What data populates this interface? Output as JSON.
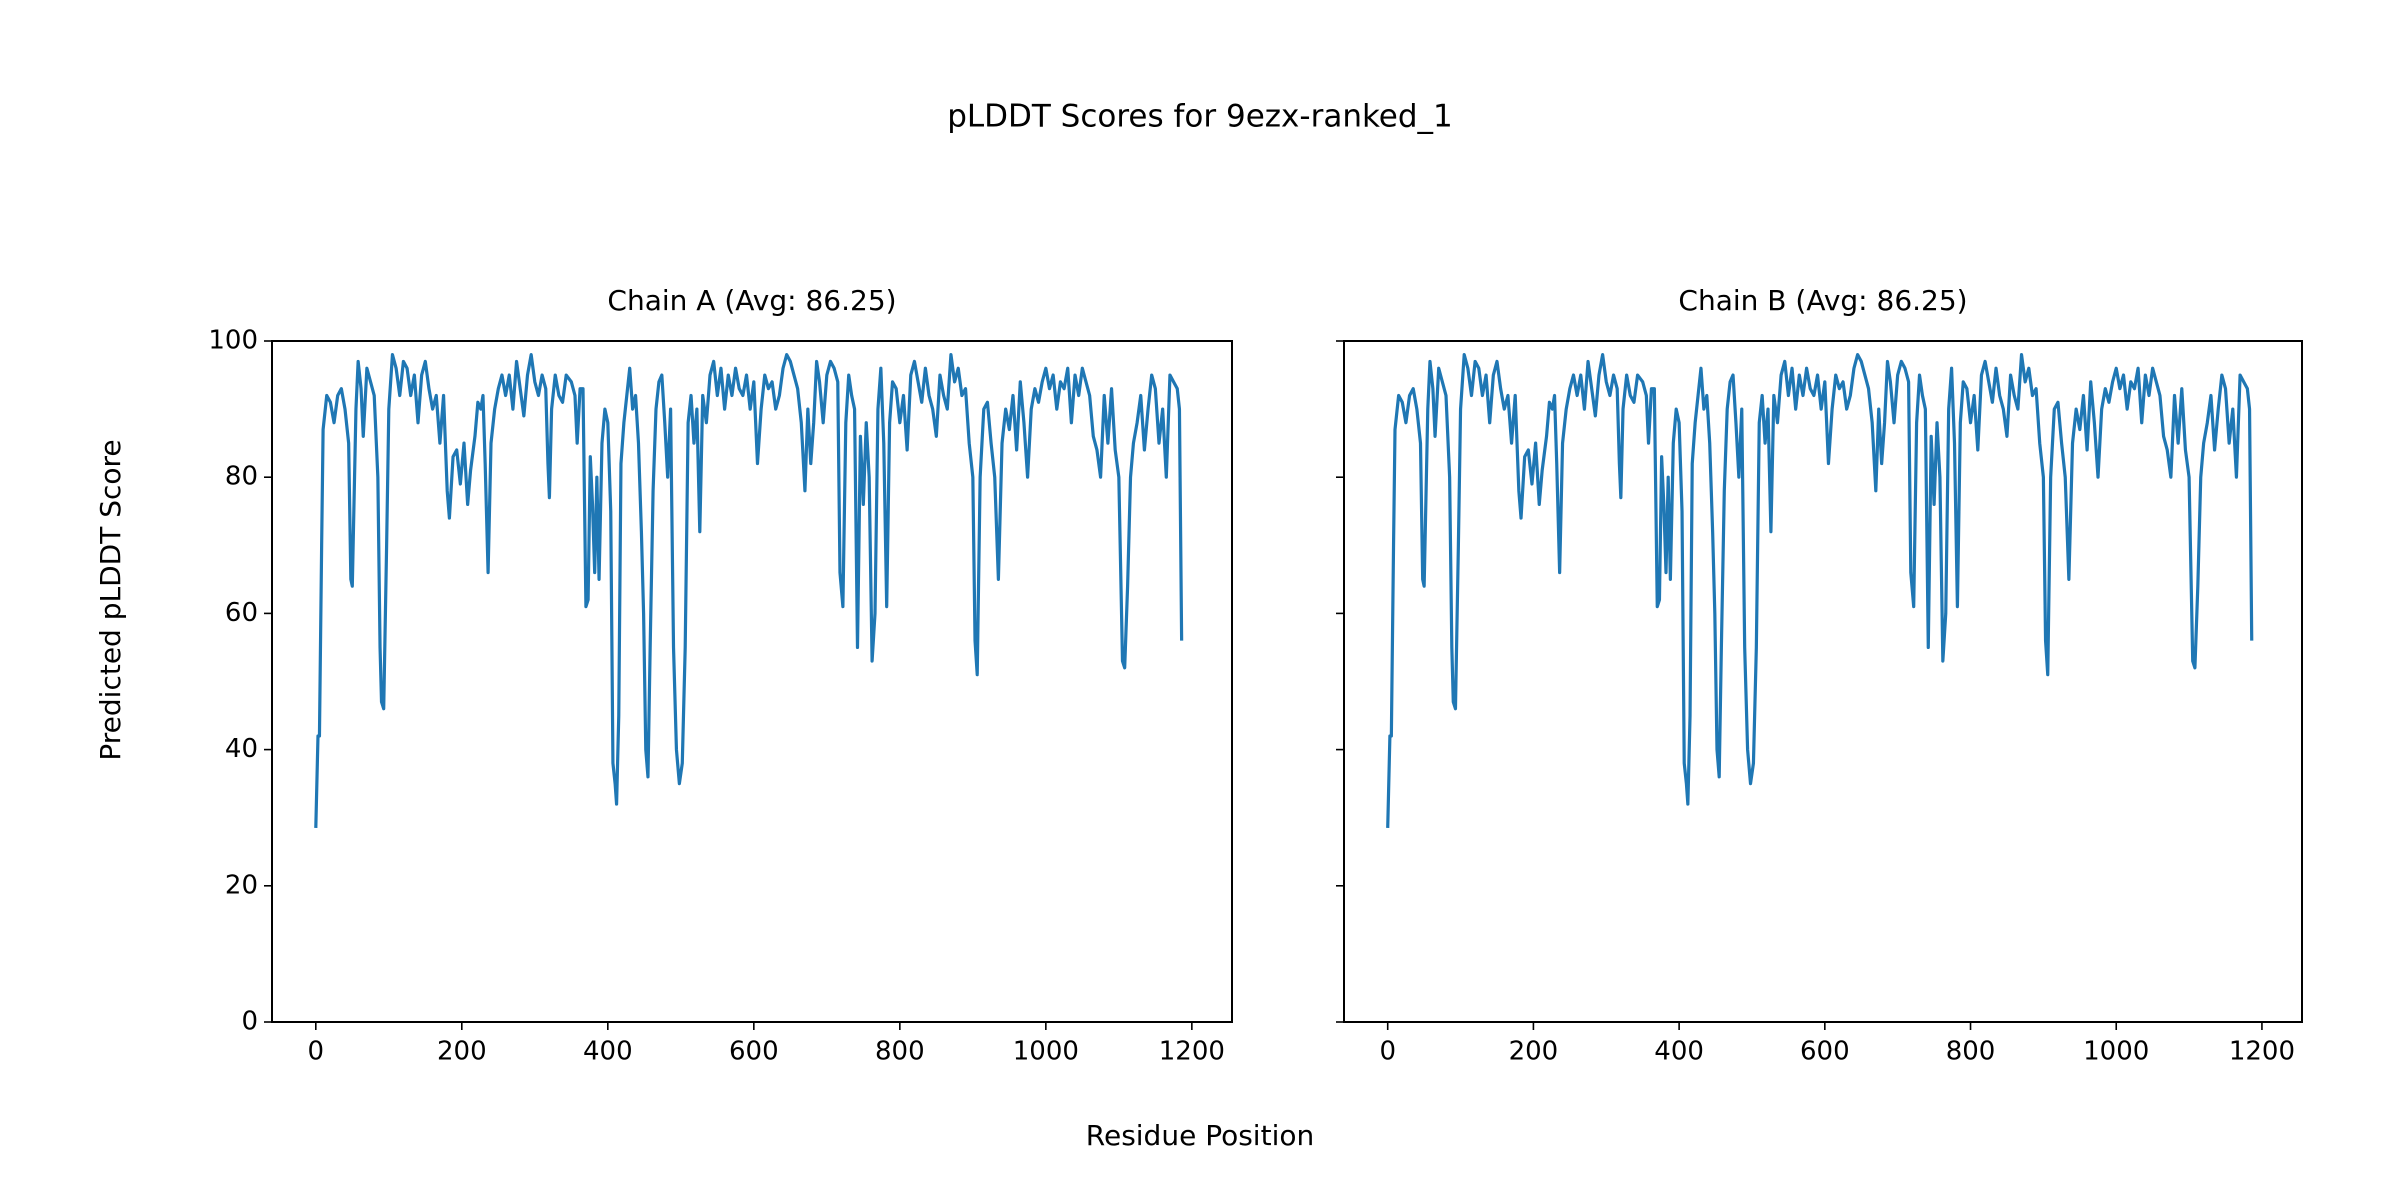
{
  "title": "pLDDT Scores for 9ezx-ranked_1",
  "xlabel": "Residue Position",
  "ylabel": "Predicted pLDDT Score",
  "chart_data": [
    {
      "type": "line",
      "title": "Chain A (Avg: 86.25)",
      "color": "#1f77b4",
      "xlim": [
        -60,
        1255
      ],
      "ylim": [
        0,
        100
      ],
      "xticks": [
        0,
        200,
        400,
        600,
        800,
        1000,
        1200
      ],
      "yticks": [
        0,
        20,
        40,
        60,
        80,
        100
      ],
      "show_ytick_labels": true,
      "x": [
        0,
        3,
        5,
        8,
        10,
        15,
        20,
        25,
        30,
        35,
        40,
        45,
        48,
        50,
        55,
        58,
        62,
        65,
        70,
        75,
        80,
        85,
        88,
        90,
        93,
        97,
        100,
        105,
        110,
        115,
        120,
        125,
        130,
        135,
        140,
        145,
        150,
        155,
        160,
        165,
        170,
        175,
        180,
        183,
        188,
        193,
        198,
        203,
        208,
        212,
        218,
        222,
        226,
        229,
        232,
        236,
        240,
        245,
        250,
        255,
        260,
        265,
        270,
        275,
        280,
        285,
        290,
        295,
        300,
        305,
        310,
        315,
        318,
        320,
        323,
        328,
        333,
        338,
        343,
        350,
        355,
        358,
        362,
        366,
        370,
        373,
        376,
        379,
        382,
        385,
        388,
        392,
        396,
        400,
        404,
        407,
        410,
        412,
        415,
        418,
        422,
        426,
        430,
        434,
        438,
        442,
        446,
        449,
        452,
        455,
        458,
        462,
        466,
        470,
        474,
        478,
        482,
        486,
        490,
        494,
        498,
        502,
        506,
        510,
        514,
        518,
        522,
        526,
        530,
        535,
        540,
        545,
        550,
        555,
        560,
        565,
        570,
        575,
        580,
        585,
        590,
        595,
        600,
        605,
        610,
        615,
        620,
        625,
        630,
        635,
        640,
        645,
        650,
        655,
        660,
        665,
        670,
        674,
        678,
        682,
        686,
        690,
        695,
        700,
        705,
        710,
        715,
        718,
        722,
        726,
        730,
        734,
        738,
        742,
        746,
        750,
        754,
        758,
        762,
        766,
        770,
        774,
        778,
        782,
        786,
        790,
        795,
        800,
        805,
        810,
        815,
        820,
        825,
        830,
        835,
        840,
        845,
        850,
        855,
        860,
        865,
        870,
        875,
        880,
        885,
        890,
        895,
        900,
        903,
        906,
        910,
        915,
        920,
        925,
        930,
        935,
        940,
        945,
        950,
        955,
        960,
        965,
        970,
        975,
        980,
        985,
        990,
        995,
        1000,
        1005,
        1010,
        1015,
        1020,
        1025,
        1030,
        1035,
        1040,
        1045,
        1050,
        1055,
        1060,
        1065,
        1070,
        1075,
        1080,
        1085,
        1090,
        1095,
        1100,
        1105,
        1108,
        1112,
        1116,
        1120,
        1125,
        1130,
        1135,
        1140,
        1145,
        1150,
        1155,
        1160,
        1165,
        1170,
        1175,
        1180,
        1183,
        1186
      ],
      "values": [
        28.5,
        42,
        42,
        70,
        87,
        92,
        91,
        88,
        92,
        93,
        90,
        85,
        65,
        64,
        90,
        97,
        93,
        86,
        96,
        94,
        92,
        80,
        55,
        47,
        46,
        70,
        90,
        98,
        96,
        92,
        97,
        96,
        92,
        95,
        88,
        95,
        97,
        93,
        90,
        92,
        85,
        92,
        78,
        74,
        83,
        84,
        79,
        85,
        76,
        81,
        86,
        91,
        90,
        92,
        82,
        66,
        85,
        90,
        93,
        95,
        92,
        95,
        90,
        97,
        93,
        89,
        95,
        98,
        94,
        92,
        95,
        93,
        82,
        77,
        90,
        95,
        92,
        91,
        95,
        94,
        92,
        85,
        93,
        93,
        61,
        62,
        83,
        76,
        66,
        80,
        65,
        85,
        90,
        88,
        75,
        38,
        35,
        32,
        45,
        82,
        88,
        92,
        96,
        90,
        92,
        85,
        72,
        60,
        40,
        36,
        55,
        78,
        90,
        94,
        95,
        88,
        80,
        90,
        55,
        40,
        35,
        38,
        55,
        88,
        92,
        85,
        90,
        72,
        92,
        88,
        95,
        97,
        92,
        96,
        90,
        95,
        92,
        96,
        93,
        92,
        95,
        90,
        94,
        82,
        90,
        95,
        93,
        94,
        90,
        92,
        96,
        98,
        97,
        95,
        93,
        88,
        78,
        90,
        82,
        88,
        97,
        94,
        88,
        95,
        97,
        96,
        94,
        66,
        61,
        88,
        95,
        92,
        90,
        55,
        86,
        76,
        88,
        80,
        53,
        60,
        90,
        96,
        85,
        61,
        88,
        94,
        93,
        88,
        92,
        84,
        95,
        97,
        94,
        91,
        96,
        92,
        90,
        86,
        95,
        92,
        90,
        98,
        94,
        96,
        92,
        93,
        85,
        80,
        56,
        51,
        80,
        90,
        91,
        85,
        80,
        65,
        85,
        90,
        87,
        92,
        84,
        94,
        88,
        80,
        90,
        93,
        91,
        94,
        96,
        93,
        95,
        90,
        94,
        93,
        96,
        88,
        95,
        92,
        96,
        94,
        92,
        86,
        84,
        80,
        92,
        85,
        93,
        84,
        80,
        53,
        52,
        64,
        80,
        85,
        88,
        92,
        84,
        90,
        95,
        93,
        85,
        90,
        80,
        95,
        94,
        93,
        90,
        56
      ]
    },
    {
      "type": "line",
      "title": "Chain B (Avg: 86.25)",
      "color": "#1f77b4",
      "xlim": [
        -60,
        1255
      ],
      "ylim": [
        0,
        100
      ],
      "xticks": [
        0,
        200,
        400,
        600,
        800,
        1000,
        1200
      ],
      "yticks": [
        0,
        20,
        40,
        60,
        80,
        100
      ],
      "show_ytick_labels": false,
      "x": [
        0,
        3,
        5,
        8,
        10,
        15,
        20,
        25,
        30,
        35,
        40,
        45,
        48,
        50,
        55,
        58,
        62,
        65,
        70,
        75,
        80,
        85,
        88,
        90,
        93,
        97,
        100,
        105,
        110,
        115,
        120,
        125,
        130,
        135,
        140,
        145,
        150,
        155,
        160,
        165,
        170,
        175,
        180,
        183,
        188,
        193,
        198,
        203,
        208,
        212,
        218,
        222,
        226,
        229,
        232,
        236,
        240,
        245,
        250,
        255,
        260,
        265,
        270,
        275,
        280,
        285,
        290,
        295,
        300,
        305,
        310,
        315,
        318,
        320,
        323,
        328,
        333,
        338,
        343,
        350,
        355,
        358,
        362,
        366,
        370,
        373,
        376,
        379,
        382,
        385,
        388,
        392,
        396,
        400,
        404,
        407,
        410,
        412,
        415,
        418,
        422,
        426,
        430,
        434,
        438,
        442,
        446,
        449,
        452,
        455,
        458,
        462,
        466,
        470,
        474,
        478,
        482,
        486,
        490,
        494,
        498,
        502,
        506,
        510,
        514,
        518,
        522,
        526,
        530,
        535,
        540,
        545,
        550,
        555,
        560,
        565,
        570,
        575,
        580,
        585,
        590,
        595,
        600,
        605,
        610,
        615,
        620,
        625,
        630,
        635,
        640,
        645,
        650,
        655,
        660,
        665,
        670,
        674,
        678,
        682,
        686,
        690,
        695,
        700,
        705,
        710,
        715,
        718,
        722,
        726,
        730,
        734,
        738,
        742,
        746,
        750,
        754,
        758,
        762,
        766,
        770,
        774,
        778,
        782,
        786,
        790,
        795,
        800,
        805,
        810,
        815,
        820,
        825,
        830,
        835,
        840,
        845,
        850,
        855,
        860,
        865,
        870,
        875,
        880,
        885,
        890,
        895,
        900,
        903,
        906,
        910,
        915,
        920,
        925,
        930,
        935,
        940,
        945,
        950,
        955,
        960,
        965,
        970,
        975,
        980,
        985,
        990,
        995,
        1000,
        1005,
        1010,
        1015,
        1020,
        1025,
        1030,
        1035,
        1040,
        1045,
        1050,
        1055,
        1060,
        1065,
        1070,
        1075,
        1080,
        1085,
        1090,
        1095,
        1100,
        1105,
        1108,
        1112,
        1116,
        1120,
        1125,
        1130,
        1135,
        1140,
        1145,
        1150,
        1155,
        1160,
        1165,
        1170,
        1175,
        1180,
        1183,
        1186
      ],
      "values": [
        28.5,
        42,
        42,
        70,
        87,
        92,
        91,
        88,
        92,
        93,
        90,
        85,
        65,
        64,
        90,
        97,
        93,
        86,
        96,
        94,
        92,
        80,
        55,
        47,
        46,
        70,
        90,
        98,
        96,
        92,
        97,
        96,
        92,
        95,
        88,
        95,
        97,
        93,
        90,
        92,
        85,
        92,
        78,
        74,
        83,
        84,
        79,
        85,
        76,
        81,
        86,
        91,
        90,
        92,
        82,
        66,
        85,
        90,
        93,
        95,
        92,
        95,
        90,
        97,
        93,
        89,
        95,
        98,
        94,
        92,
        95,
        93,
        82,
        77,
        90,
        95,
        92,
        91,
        95,
        94,
        92,
        85,
        93,
        93,
        61,
        62,
        83,
        76,
        66,
        80,
        65,
        85,
        90,
        88,
        75,
        38,
        35,
        32,
        45,
        82,
        88,
        92,
        96,
        90,
        92,
        85,
        72,
        60,
        40,
        36,
        55,
        78,
        90,
        94,
        95,
        88,
        80,
        90,
        55,
        40,
        35,
        38,
        55,
        88,
        92,
        85,
        90,
        72,
        92,
        88,
        95,
        97,
        92,
        96,
        90,
        95,
        92,
        96,
        93,
        92,
        95,
        90,
        94,
        82,
        90,
        95,
        93,
        94,
        90,
        92,
        96,
        98,
        97,
        95,
        93,
        88,
        78,
        90,
        82,
        88,
        97,
        94,
        88,
        95,
        97,
        96,
        94,
        66,
        61,
        88,
        95,
        92,
        90,
        55,
        86,
        76,
        88,
        80,
        53,
        60,
        90,
        96,
        85,
        61,
        88,
        94,
        93,
        88,
        92,
        84,
        95,
        97,
        94,
        91,
        96,
        92,
        90,
        86,
        95,
        92,
        90,
        98,
        94,
        96,
        92,
        93,
        85,
        80,
        56,
        51,
        80,
        90,
        91,
        85,
        80,
        65,
        85,
        90,
        87,
        92,
        84,
        94,
        88,
        80,
        90,
        93,
        91,
        94,
        96,
        93,
        95,
        90,
        94,
        93,
        96,
        88,
        95,
        92,
        96,
        94,
        92,
        86,
        84,
        80,
        92,
        85,
        93,
        84,
        80,
        53,
        52,
        64,
        80,
        85,
        88,
        92,
        84,
        90,
        95,
        93,
        85,
        90,
        80,
        95,
        94,
        93,
        90,
        56
      ]
    }
  ]
}
